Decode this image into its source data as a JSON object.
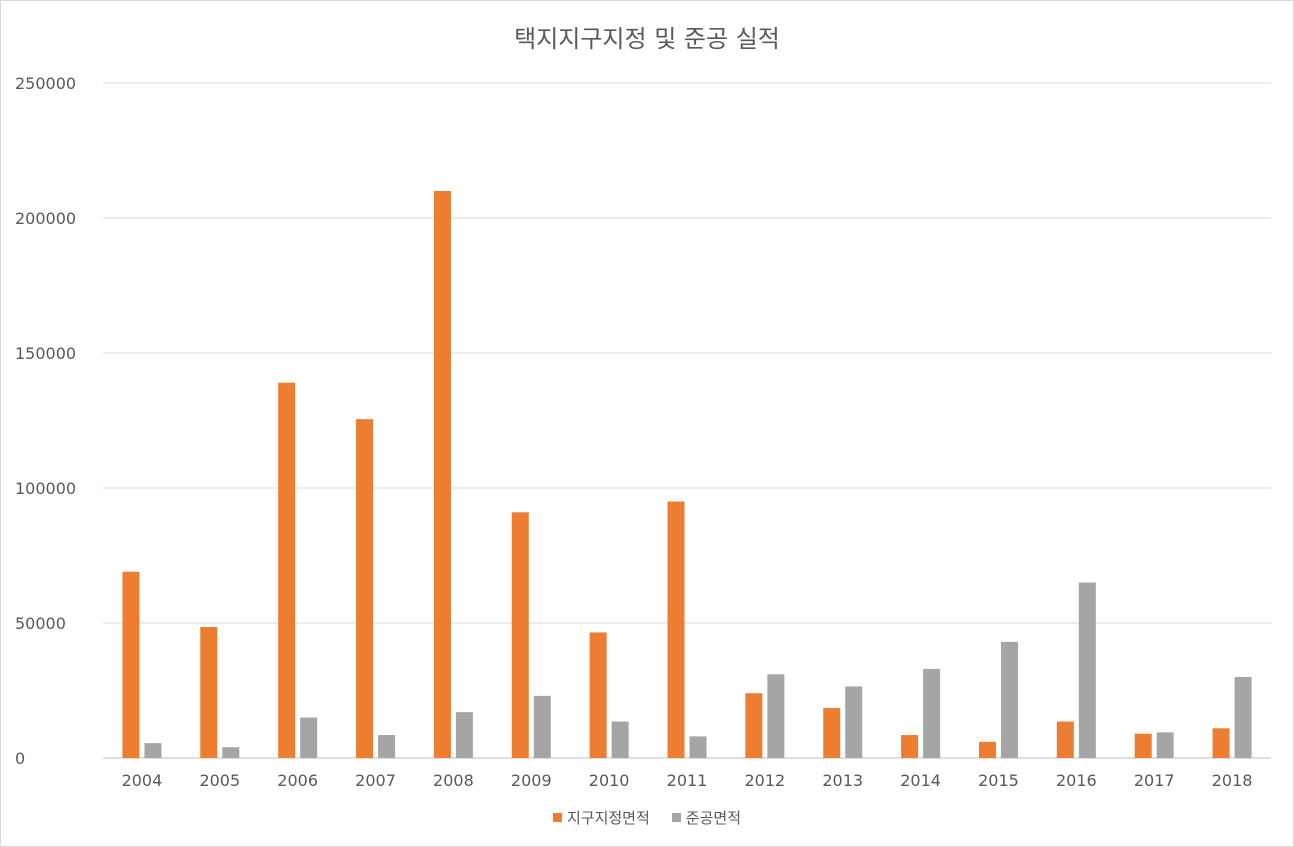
{
  "chart_data": {
    "type": "bar",
    "title": "택지지구지정 및 준공 실적",
    "xlabel": "",
    "ylabel": "",
    "ylim": [
      0,
      250000
    ],
    "yticks": [
      "0",
      "50000",
      "100000",
      "150000",
      "200000",
      "250000"
    ],
    "grid": true,
    "legend_position": "bottom",
    "categories": [
      "2004",
      "2005",
      "2006",
      "2007",
      "2008",
      "2009",
      "2010",
      "2011",
      "2012",
      "2013",
      "2014",
      "2015",
      "2016",
      "2017",
      "2018"
    ],
    "series": [
      {
        "name": "지구지정면적",
        "color": "#ED7D31",
        "values": [
          69000,
          48500,
          139000,
          125500,
          210000,
          91000,
          46500,
          95000,
          24000,
          18500,
          8500,
          6000,
          13500,
          9000,
          11000
        ]
      },
      {
        "name": "준공면적",
        "color": "#A5A5A5",
        "values": [
          5500,
          4000,
          15000,
          8500,
          17000,
          23000,
          13500,
          8000,
          31000,
          26500,
          33000,
          43000,
          65000,
          9500,
          30000
        ]
      }
    ]
  }
}
